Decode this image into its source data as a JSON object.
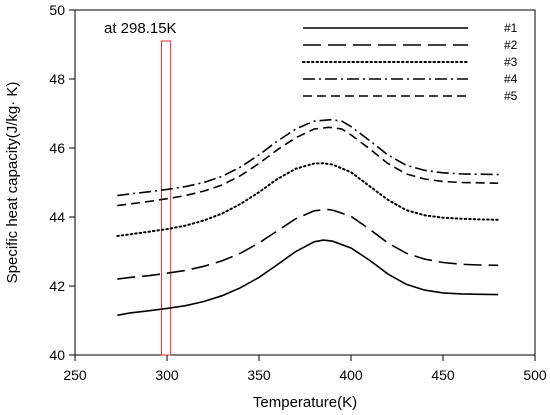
{
  "chart_data": {
    "type": "line",
    "title": "",
    "xlabel": "Temperature(K)",
    "ylabel": "Specific heat capacity(J/kg· K)",
    "xlim": [
      250,
      500
    ],
    "ylim": [
      40,
      50
    ],
    "xticks": [
      "250",
      "300",
      "350",
      "400",
      "450",
      "500"
    ],
    "yticks": [
      "40",
      "42",
      "44",
      "46",
      "48",
      "50"
    ],
    "legend_position": "top-right",
    "grid": false,
    "annotation": {
      "text": "at 298.15K",
      "x_range": [
        297,
        302
      ],
      "color": "#e03030"
    },
    "series": [
      {
        "name": "#1",
        "dash": "solid",
        "x": [
          273,
          280,
          290,
          300,
          310,
          320,
          330,
          340,
          350,
          360,
          370,
          380,
          385,
          390,
          400,
          410,
          420,
          430,
          440,
          450,
          460,
          470,
          480
        ],
        "y": [
          41.15,
          41.22,
          41.28,
          41.35,
          41.43,
          41.55,
          41.72,
          41.95,
          42.25,
          42.62,
          43.0,
          43.28,
          43.33,
          43.3,
          43.1,
          42.75,
          42.35,
          42.05,
          41.88,
          41.8,
          41.77,
          41.76,
          41.75
        ]
      },
      {
        "name": "#2",
        "dash": "long-dash",
        "x": [
          273,
          280,
          290,
          300,
          310,
          320,
          330,
          340,
          350,
          360,
          370,
          380,
          387,
          390,
          400,
          410,
          420,
          430,
          440,
          450,
          460,
          470,
          480
        ],
        "y": [
          42.2,
          42.25,
          42.3,
          42.37,
          42.45,
          42.57,
          42.73,
          42.95,
          43.25,
          43.6,
          43.95,
          44.18,
          44.22,
          44.2,
          44.02,
          43.65,
          43.25,
          42.95,
          42.78,
          42.68,
          42.63,
          42.61,
          42.6
        ]
      },
      {
        "name": "#3",
        "dash": "dotted",
        "x": [
          273,
          280,
          290,
          300,
          310,
          320,
          330,
          340,
          350,
          360,
          370,
          380,
          385,
          390,
          400,
          410,
          420,
          430,
          440,
          450,
          460,
          470,
          480
        ],
        "y": [
          43.45,
          43.5,
          43.57,
          43.65,
          43.75,
          43.9,
          44.1,
          44.38,
          44.72,
          45.1,
          45.4,
          45.55,
          45.56,
          45.52,
          45.3,
          44.9,
          44.5,
          44.2,
          44.05,
          43.98,
          43.95,
          43.93,
          43.92
        ]
      },
      {
        "name": "#4",
        "dash": "dash-dot",
        "x": [
          273,
          280,
          290,
          300,
          310,
          320,
          330,
          340,
          350,
          360,
          370,
          380,
          389,
          395,
          400,
          410,
          420,
          430,
          440,
          450,
          460,
          470,
          482
        ],
        "y": [
          44.62,
          44.67,
          44.73,
          44.8,
          44.88,
          45.0,
          45.18,
          45.45,
          45.8,
          46.2,
          46.55,
          46.78,
          46.82,
          46.78,
          46.62,
          46.22,
          45.8,
          45.5,
          45.35,
          45.28,
          45.25,
          45.24,
          45.23
        ]
      },
      {
        "name": "#5",
        "dash": "dash",
        "x": [
          273,
          280,
          290,
          300,
          310,
          320,
          330,
          340,
          350,
          360,
          370,
          380,
          388,
          395,
          400,
          410,
          420,
          430,
          440,
          450,
          460,
          470,
          480
        ],
        "y": [
          44.33,
          44.38,
          44.45,
          44.53,
          44.62,
          44.75,
          44.93,
          45.2,
          45.55,
          45.95,
          46.3,
          46.55,
          46.6,
          46.55,
          46.38,
          45.98,
          45.55,
          45.25,
          45.1,
          45.03,
          45.0,
          44.99,
          44.98
        ]
      }
    ]
  }
}
